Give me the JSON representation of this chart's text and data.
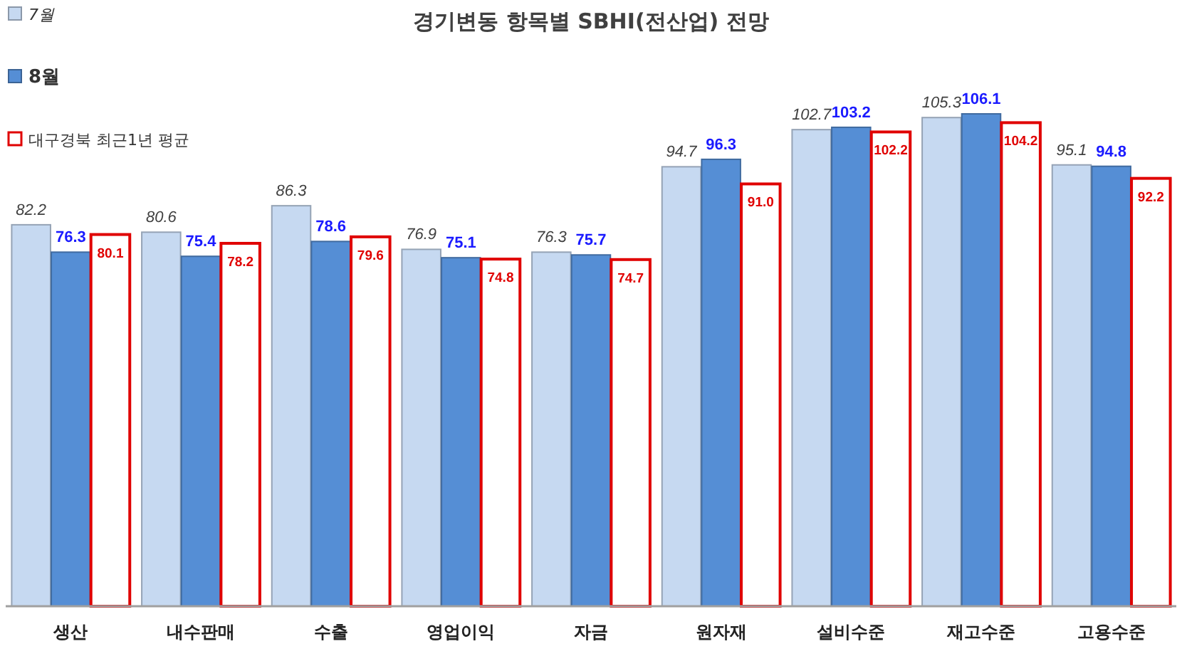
{
  "chart_data": {
    "type": "bar",
    "title": "경기변동 항목별 SBHI(전산업) 전망",
    "categories": [
      "생산",
      "내수판매",
      "수출",
      "영업이익",
      "자금",
      "원자재",
      "설비수준",
      "재고수준",
      "고용수준"
    ],
    "series": [
      {
        "name": "7월",
        "color": "#c6d9f1",
        "values": [
          82.2,
          80.6,
          86.3,
          76.9,
          76.3,
          94.7,
          102.7,
          105.3,
          95.1
        ]
      },
      {
        "name": "8월",
        "color": "#558ed5",
        "values": [
          76.3,
          75.4,
          78.6,
          75.1,
          75.7,
          96.3,
          103.2,
          106.1,
          94.8
        ]
      },
      {
        "name": "대구경북 최근1년 평균",
        "color": "#e00000",
        "values": [
          80.1,
          78.2,
          79.6,
          74.8,
          74.7,
          91.0,
          102.2,
          104.2,
          92.2
        ],
        "value_labels": [
          "80.1",
          "78.2",
          "79.6",
          "74.8",
          "74.7",
          "91.0",
          "102.2",
          "104.2",
          "92.2"
        ]
      }
    ],
    "tick_labels": "x",
    "data_labels": true,
    "legend": "top left"
  }
}
